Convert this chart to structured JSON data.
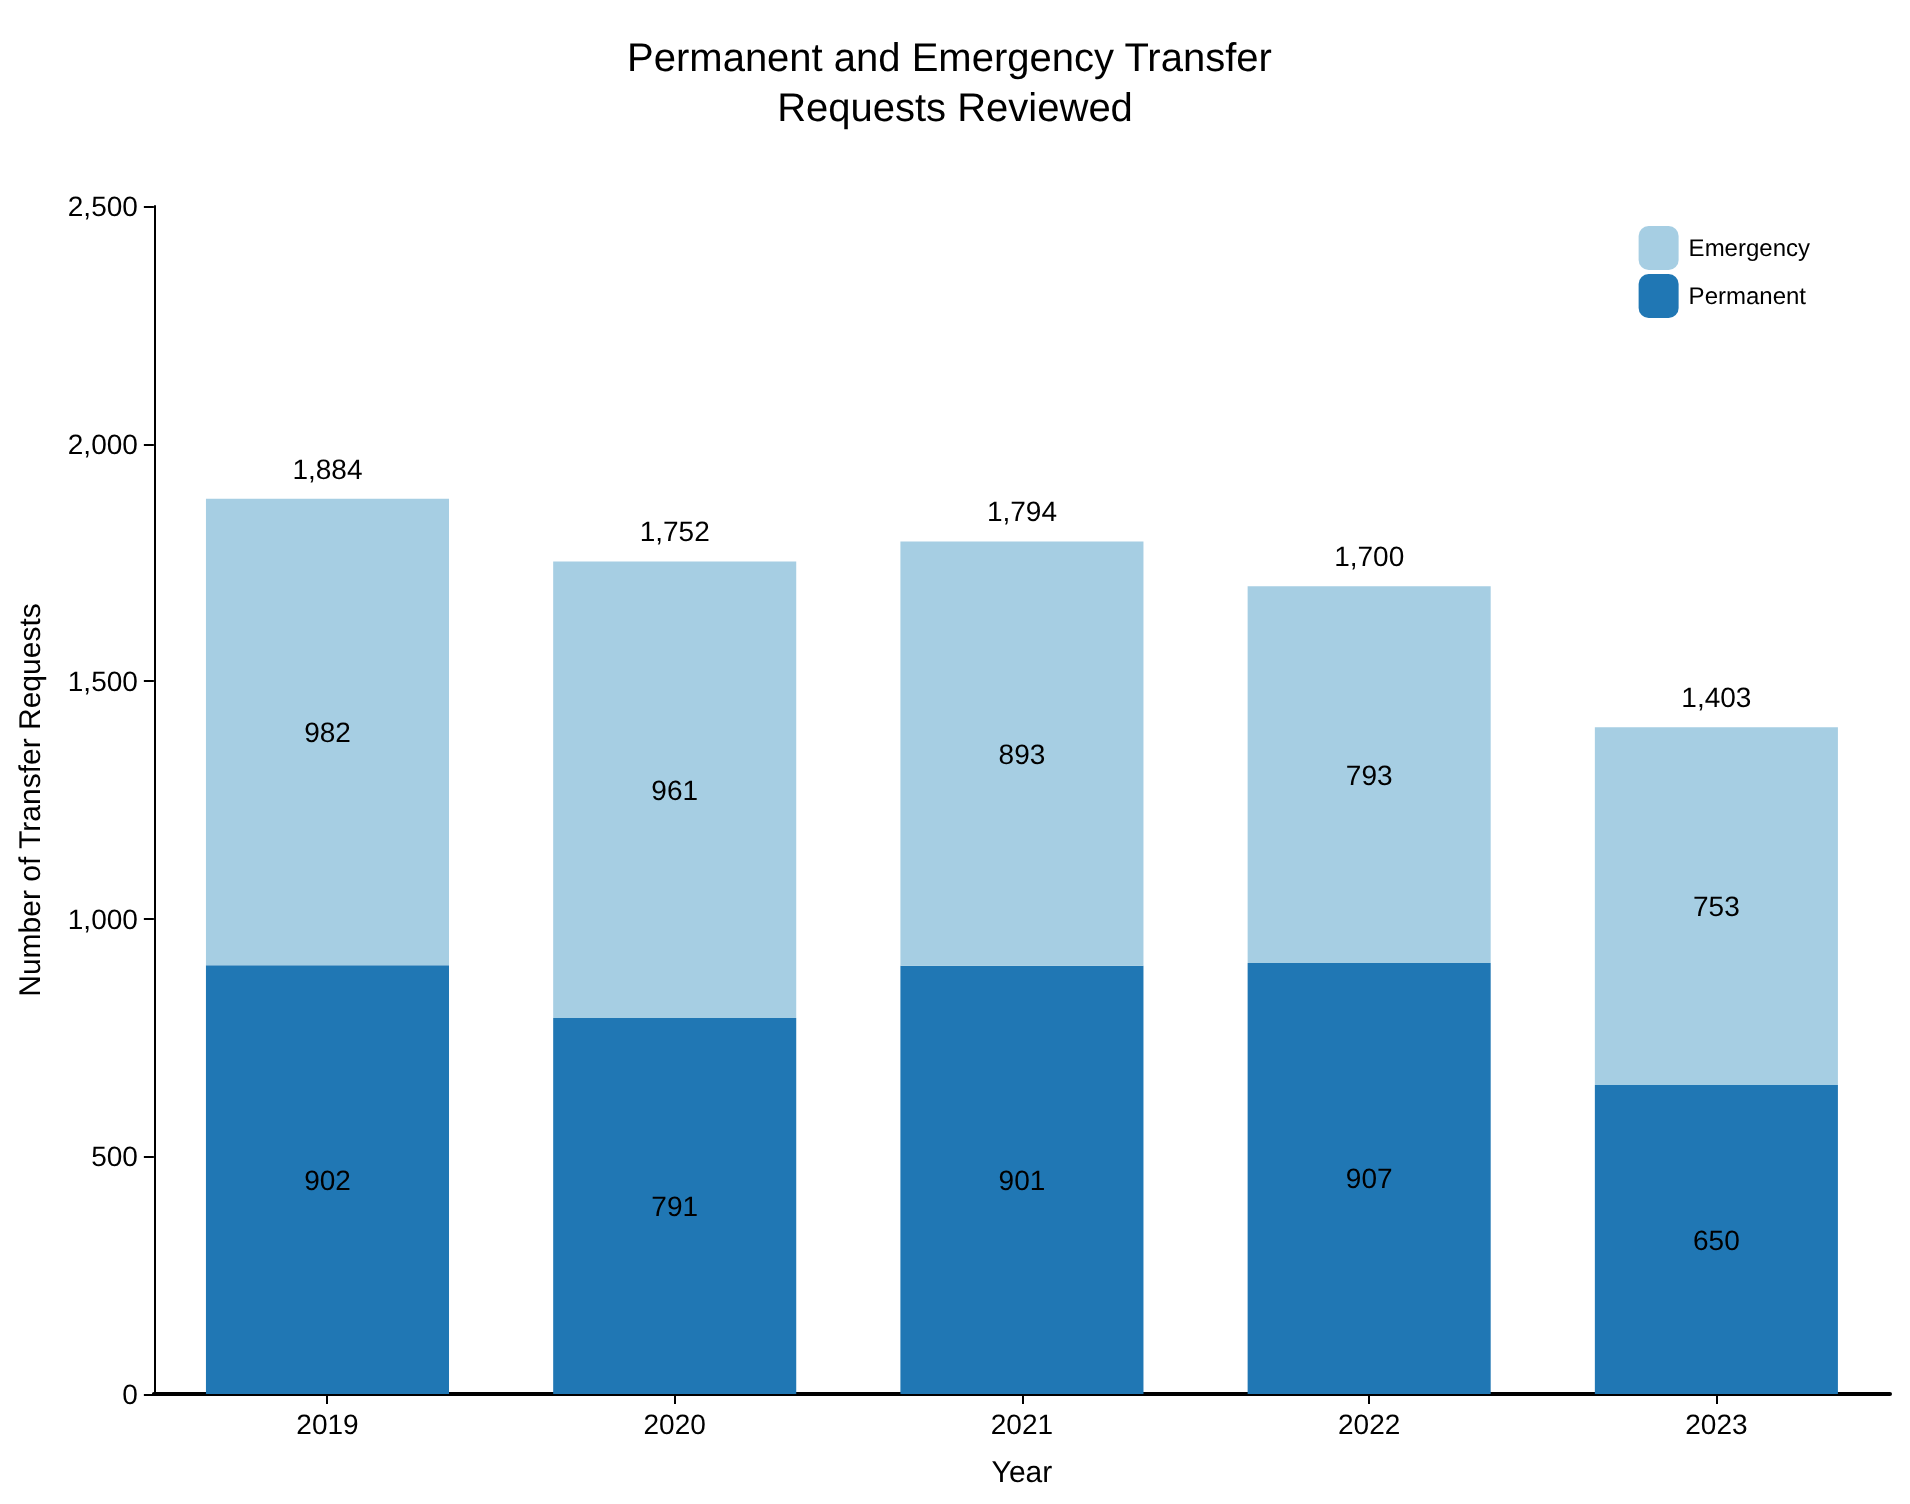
{
  "chart_data": {
    "type": "bar",
    "title": "Permanent and Emergency Transfer Requests Reviewed",
    "xlabel": "Year",
    "ylabel": "Number of Transfer Requests",
    "categories": [
      "2019",
      "2020",
      "2021",
      "2022",
      "2023"
    ],
    "series": [
      {
        "name": "Permanent",
        "color": "#2077b4",
        "values": [
          902,
          791,
          901,
          907,
          650
        ]
      },
      {
        "name": "Emergency",
        "color": "#a6cee3",
        "values": [
          982,
          961,
          893,
          793,
          753
        ]
      }
    ],
    "stacked": true,
    "data_labels": true,
    "totals": [
      "1,884",
      "1,752",
      "1,794",
      "1,700",
      "1,403"
    ],
    "ylim": [
      0,
      2500
    ],
    "yticks": [
      0,
      500,
      {
        "value": 1000,
        "label": "1,000"
      },
      {
        "value": 1500,
        "label": "1,500"
      },
      {
        "value": 2000,
        "label": "2,000"
      },
      {
        "value": 2500,
        "label": "2,500"
      }
    ],
    "grid": false,
    "legend": "top right"
  }
}
